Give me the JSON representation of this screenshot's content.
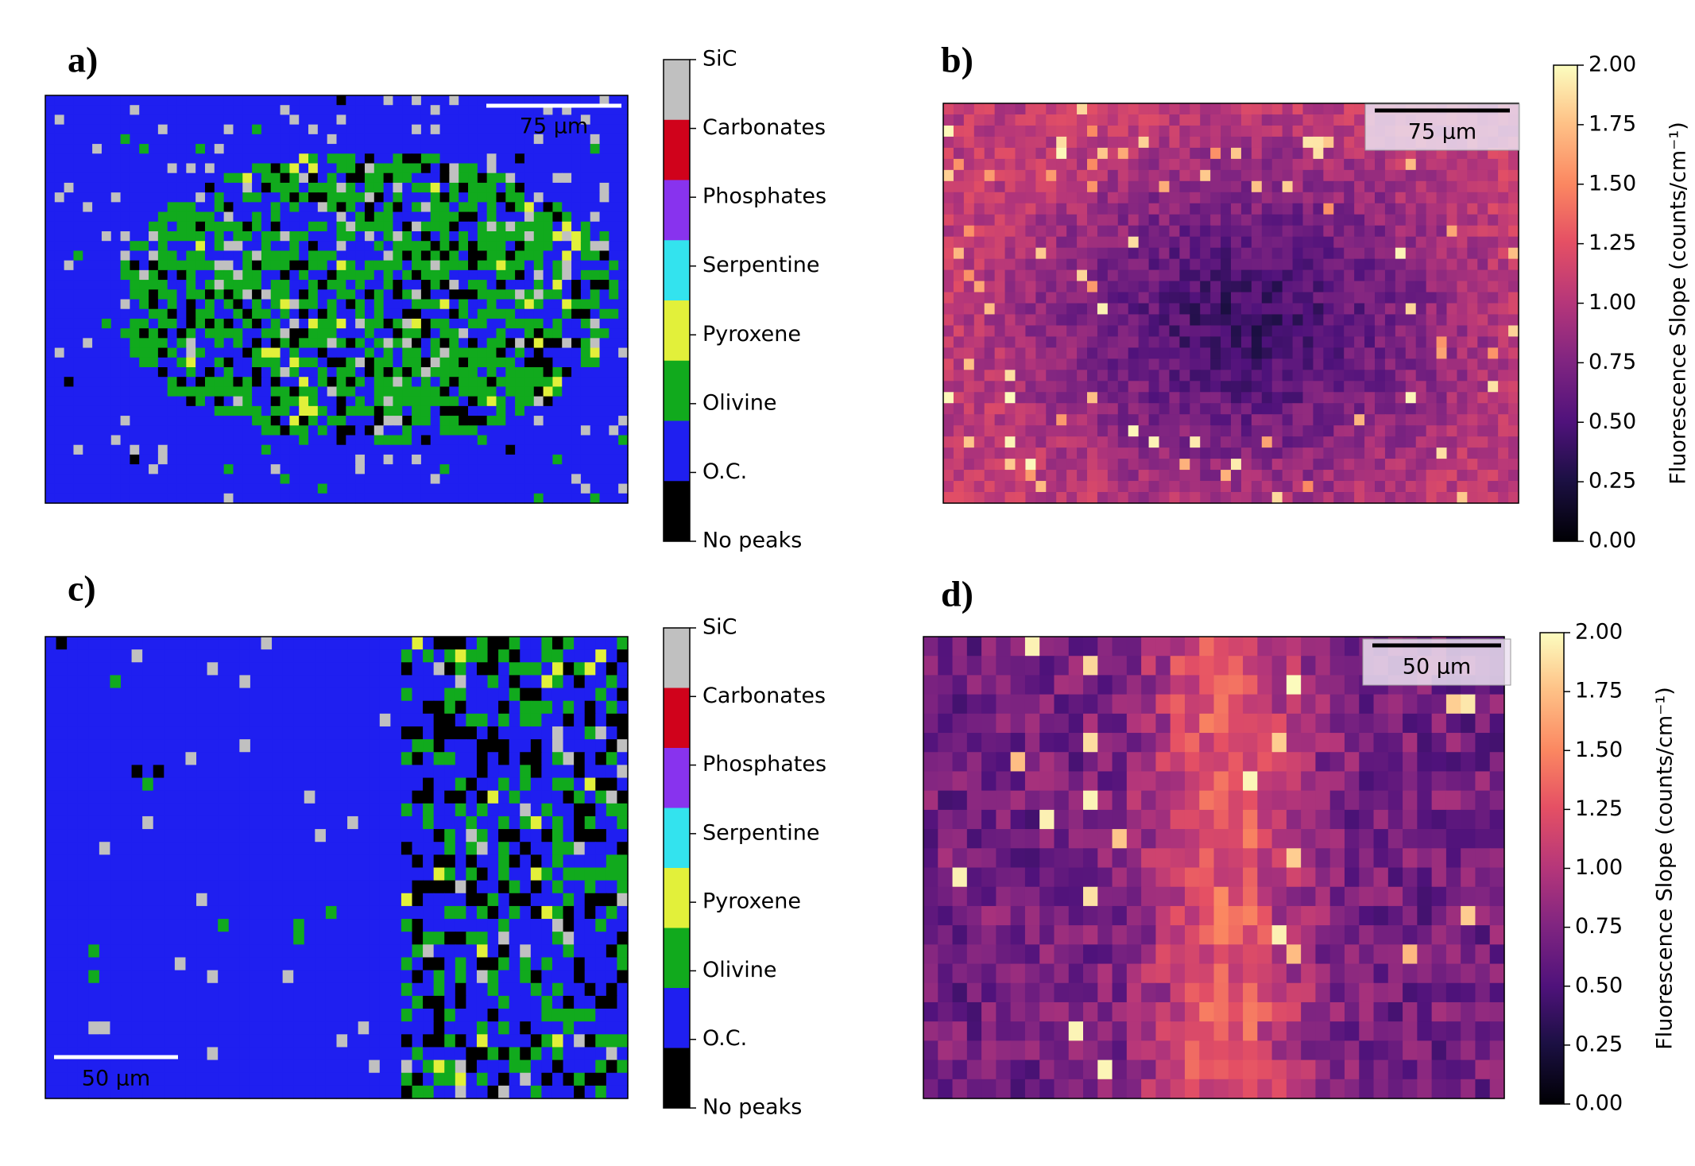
{
  "chart_data": [
    {
      "type": "heatmap",
      "panel_label": "a)",
      "scale_bar": "75 µm",
      "colorbar": {
        "categories": [
          "SiC",
          "Carbonates",
          "Phosphates",
          "Serpentine",
          "Pyroxene",
          "Olivine",
          "O.C.",
          "No peaks"
        ],
        "colors": [
          "#c0c0c0",
          "#d0021b",
          "#8833ee",
          "#33e3ee",
          "#e2f03a",
          "#11aa1d",
          "#1f1ff0",
          "#000000"
        ]
      }
    },
    {
      "type": "heatmap",
      "panel_label": "b)",
      "scale_bar": "75 µm",
      "colorbar": {
        "label": "Fluorescence Slope (counts/cm⁻¹)",
        "colormap": "magma",
        "ylim": [
          0,
          2
        ],
        "yticks": [
          {
            "value": 0,
            "label": "0.00"
          },
          {
            "value": 0.25,
            "label": "0.25"
          },
          {
            "value": 0.5,
            "label": "0.50"
          },
          {
            "value": 0.75,
            "label": "0.75"
          },
          {
            "value": 1,
            "label": "1.00"
          },
          {
            "value": 1.25,
            "label": "1.25"
          },
          {
            "value": 1.5,
            "label": "1.50"
          },
          {
            "value": 1.75,
            "label": "1.75"
          },
          {
            "value": 2,
            "label": "2.00"
          }
        ]
      }
    },
    {
      "type": "heatmap",
      "panel_label": "c)",
      "scale_bar": "50 µm",
      "colorbar": {
        "categories": [
          "SiC",
          "Carbonates",
          "Phosphates",
          "Serpentine",
          "Pyroxene",
          "Olivine",
          "O.C.",
          "No peaks"
        ],
        "colors": [
          "#c0c0c0",
          "#d0021b",
          "#8833ee",
          "#33e3ee",
          "#e2f03a",
          "#11aa1d",
          "#1f1ff0",
          "#000000"
        ]
      }
    },
    {
      "type": "heatmap",
      "panel_label": "d)",
      "scale_bar": "50 µm",
      "colorbar": {
        "label": "Fluorescence Slope (counts/cm⁻¹)",
        "colormap": "magma",
        "ylim": [
          0,
          2
        ],
        "yticks": [
          {
            "value": 0,
            "label": "0.00"
          },
          {
            "value": 0.25,
            "label": "0.25"
          },
          {
            "value": 0.5,
            "label": "0.50"
          },
          {
            "value": 0.75,
            "label": "0.75"
          },
          {
            "value": 1,
            "label": "1.00"
          },
          {
            "value": 1.25,
            "label": "1.25"
          },
          {
            "value": 1.5,
            "label": "1.50"
          },
          {
            "value": 1.75,
            "label": "1.75"
          },
          {
            "value": 2,
            "label": "2.00"
          }
        ]
      }
    }
  ]
}
